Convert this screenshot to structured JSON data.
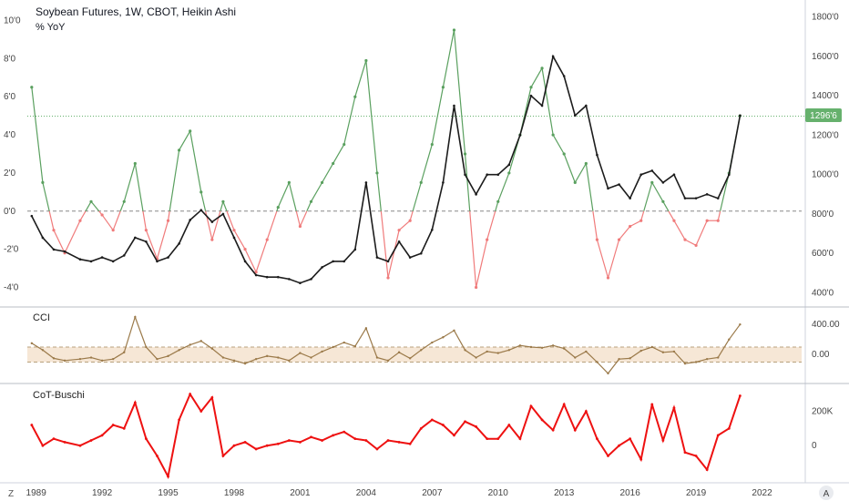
{
  "header": {
    "title": "Soybean Futures, 1W, CBOT, Heikin Ashi",
    "subtitle": "% YoY"
  },
  "price_badge": {
    "value": "1296'6",
    "color": "#66b16d"
  },
  "colors": {
    "yoy_positive": "#5aa05f",
    "yoy_negative": "#f07b7b",
    "candles": "#1c1c1c",
    "cci_line": "#9b7a4a",
    "cci_band": "#f6e7d6",
    "cot_line": "#ee1111",
    "dashed": "#888888"
  },
  "footer": {
    "left_corner": "Z",
    "right_corner": "A"
  },
  "chart_data": [
    {
      "type": "line",
      "title": "Soybean Futures, 1W, CBOT, Heikin Ashi",
      "series": [
        {
          "name": "% YoY",
          "axis": "left",
          "x": [
            1988.8,
            1989.3,
            1989.8,
            1990.3,
            1991.0,
            1991.5,
            1992.0,
            1992.5,
            1993.0,
            1993.5,
            1994.0,
            1994.5,
            1995.0,
            1995.5,
            1996.0,
            1996.5,
            1997.0,
            1997.5,
            1998.0,
            1998.5,
            1999.0,
            1999.5,
            2000.0,
            2000.5,
            2001.0,
            2001.5,
            2002.0,
            2002.5,
            2003.0,
            2003.5,
            2004.0,
            2004.5,
            2005.0,
            2005.5,
            2006.0,
            2006.5,
            2007.0,
            2007.5,
            2008.0,
            2008.5,
            2009.0,
            2009.5,
            2010.0,
            2010.5,
            2011.0,
            2011.5,
            2012.0,
            2012.5,
            2013.0,
            2013.5,
            2014.0,
            2014.5,
            2015.0,
            2015.5,
            2016.0,
            2016.5,
            2017.0,
            2017.5,
            2018.0,
            2018.5,
            2019.0,
            2019.5,
            2020.0,
            2020.5,
            2021.0
          ],
          "values": [
            6.5,
            1.5,
            -1.0,
            -2.2,
            -0.5,
            0.5,
            -0.2,
            -1.0,
            0.5,
            2.5,
            -1.0,
            -2.5,
            -0.5,
            3.2,
            4.2,
            1.0,
            -1.5,
            0.5,
            -1.0,
            -2.0,
            -3.2,
            -1.5,
            0.2,
            1.5,
            -0.8,
            0.5,
            1.5,
            2.5,
            3.5,
            6.0,
            7.9,
            2.0,
            -3.5,
            -1.0,
            -0.5,
            1.5,
            3.5,
            6.5,
            9.5,
            3.0,
            -4.0,
            -1.5,
            0.5,
            2.0,
            4.0,
            6.5,
            7.5,
            4.0,
            3.0,
            1.5,
            2.5,
            -1.5,
            -3.5,
            -1.5,
            -0.8,
            -0.5,
            1.5,
            0.5,
            -0.5,
            -1.5,
            -1.8,
            -0.5,
            -0.5,
            2.0,
            5.0
          ],
          "positive_color": "#5aa05f",
          "negative_color": "#f07b7b"
        },
        {
          "name": "Soybean Futures (Heikin Ashi close)",
          "axis": "right",
          "x": [
            1988.8,
            1989.3,
            1989.8,
            1990.3,
            1991.0,
            1991.5,
            1992.0,
            1992.5,
            1993.0,
            1993.5,
            1994.0,
            1994.5,
            1995.0,
            1995.5,
            1996.0,
            1996.5,
            1997.0,
            1997.5,
            1998.0,
            1998.5,
            1999.0,
            1999.5,
            2000.0,
            2000.5,
            2001.0,
            2001.5,
            2002.0,
            2002.5,
            2003.0,
            2003.5,
            2004.0,
            2004.5,
            2005.0,
            2005.5,
            2006.0,
            2006.5,
            2007.0,
            2007.5,
            2008.0,
            2008.5,
            2009.0,
            2009.5,
            2010.0,
            2010.5,
            2011.0,
            2011.5,
            2012.0,
            2012.5,
            2013.0,
            2013.5,
            2014.0,
            2014.5,
            2015.0,
            2015.5,
            2016.0,
            2016.5,
            2017.0,
            2017.5,
            2018.0,
            2018.5,
            2019.0,
            2019.5,
            2020.0,
            2020.5,
            2021.0
          ],
          "values": [
            790,
            680,
            620,
            610,
            570,
            560,
            580,
            560,
            590,
            680,
            660,
            560,
            580,
            650,
            770,
            820,
            760,
            800,
            680,
            560,
            490,
            480,
            480,
            470,
            450,
            470,
            530,
            560,
            560,
            620,
            960,
            580,
            560,
            660,
            580,
            600,
            720,
            960,
            1350,
            1000,
            900,
            1000,
            1000,
            1050,
            1200,
            1400,
            1350,
            1600,
            1500,
            1300,
            1350,
            1100,
            930,
            950,
            880,
            1000,
            1020,
            960,
            1000,
            880,
            880,
            900,
            880,
            1000,
            1300
          ]
        }
      ],
      "ylim_left": [
        -4.6,
        10.6
      ],
      "ylim_right": [
        370,
        1840
      ],
      "y_ticks_left": [
        "10'0",
        "8'0",
        "6'0",
        "4'0",
        "2'0",
        "0'0",
        "-2'0",
        "-4'0"
      ],
      "y_ticks_right": [
        "1800'0",
        "1600'0",
        "1400'0",
        "1200'0",
        "1000'0",
        "800'0",
        "600'0",
        "400'0"
      ],
      "zero_line": 0,
      "current_price_line": 1296.75,
      "legend": "top-left"
    },
    {
      "type": "line",
      "title": "CCI",
      "series": [
        {
          "name": "CCI",
          "x": [
            1988.8,
            1989.3,
            1989.8,
            1990.3,
            1991.0,
            1991.5,
            1992.0,
            1992.5,
            1993.0,
            1993.5,
            1994.0,
            1994.5,
            1995.0,
            1995.5,
            1996.0,
            1996.5,
            1997.0,
            1997.5,
            1998.0,
            1998.5,
            1999.0,
            1999.5,
            2000.0,
            2000.5,
            2001.0,
            2001.5,
            2002.0,
            2002.5,
            2003.0,
            2003.5,
            2004.0,
            2004.5,
            2005.0,
            2005.5,
            2006.0,
            2006.5,
            2007.0,
            2007.5,
            2008.0,
            2008.5,
            2009.0,
            2009.5,
            2010.0,
            2010.5,
            2011.0,
            2011.5,
            2012.0,
            2012.5,
            2013.0,
            2013.5,
            2014.0,
            2014.5,
            2015.0,
            2015.5,
            2016.0,
            2016.5,
            2017.0,
            2017.5,
            2018.0,
            2018.5,
            2019.0,
            2019.5,
            2020.0,
            2020.5,
            2021.0
          ],
          "values": [
            150,
            60,
            -50,
            -80,
            -60,
            -40,
            -80,
            -60,
            30,
            500,
            100,
            -60,
            -20,
            60,
            130,
            180,
            80,
            -40,
            -80,
            -120,
            -60,
            -20,
            -40,
            -80,
            20,
            -40,
            40,
            100,
            160,
            110,
            350,
            -40,
            -80,
            30,
            -50,
            60,
            160,
            230,
            320,
            60,
            -40,
            40,
            20,
            60,
            120,
            100,
            90,
            120,
            80,
            -40,
            40,
            -100,
            -250,
            -60,
            -50,
            50,
            100,
            30,
            40,
            -120,
            -100,
            -60,
            -40,
            200,
            400
          ]
        }
      ],
      "band": [
        -100,
        100
      ],
      "ylim": [
        -300,
        560
      ],
      "y_ticks": [
        "400.00",
        "0.00"
      ]
    },
    {
      "type": "line",
      "title": "CoT-Buschi",
      "series": [
        {
          "name": "CoT-Buschi",
          "x": [
            1988.8,
            1989.3,
            1989.8,
            1990.3,
            1991.0,
            1991.5,
            1992.0,
            1992.5,
            1993.0,
            1993.5,
            1994.0,
            1994.5,
            1995.0,
            1995.5,
            1996.0,
            1996.5,
            1997.0,
            1997.5,
            1998.0,
            1998.5,
            1999.0,
            1999.5,
            2000.0,
            2000.5,
            2001.0,
            2001.5,
            2002.0,
            2002.5,
            2003.0,
            2003.5,
            2004.0,
            2004.5,
            2005.0,
            2005.5,
            2006.0,
            2006.5,
            2007.0,
            2007.5,
            2008.0,
            2008.5,
            2009.0,
            2009.5,
            2010.0,
            2010.5,
            2011.0,
            2011.5,
            2012.0,
            2012.5,
            2013.0,
            2013.5,
            2014.0,
            2014.5,
            2015.0,
            2015.5,
            2016.0,
            2016.5,
            2017.0,
            2017.5,
            2018.0,
            2018.5,
            2019.0,
            2019.5,
            2020.0,
            2020.5,
            2021.0
          ],
          "values": [
            120000,
            0,
            40000,
            20000,
            0,
            30000,
            60000,
            120000,
            100000,
            250000,
            40000,
            -60000,
            -180000,
            150000,
            300000,
            200000,
            280000,
            -60000,
            0,
            20000,
            -20000,
            0,
            10000,
            30000,
            20000,
            50000,
            30000,
            60000,
            80000,
            40000,
            30000,
            -20000,
            30000,
            20000,
            10000,
            100000,
            150000,
            120000,
            60000,
            140000,
            110000,
            40000,
            40000,
            120000,
            40000,
            230000,
            150000,
            90000,
            240000,
            90000,
            200000,
            40000,
            -60000,
            0,
            40000,
            -80000,
            240000,
            30000,
            220000,
            -40000,
            -60000,
            -140000,
            60000,
            100000,
            290000
          ]
        }
      ],
      "ylim": [
        -190000,
        330000
      ],
      "y_ticks": [
        "200K",
        "0"
      ]
    }
  ],
  "x_axis": {
    "ticks": [
      "1989",
      "1992",
      "1995",
      "1998",
      "2001",
      "2004",
      "2007",
      "2010",
      "2013",
      "2016",
      "2019",
      "2022"
    ],
    "tick_values": [
      1989,
      1992,
      1995,
      1998,
      2001,
      2004,
      2007,
      2010,
      2013,
      2016,
      2019,
      2022
    ],
    "range": [
      1988.6,
      2023.8
    ]
  }
}
